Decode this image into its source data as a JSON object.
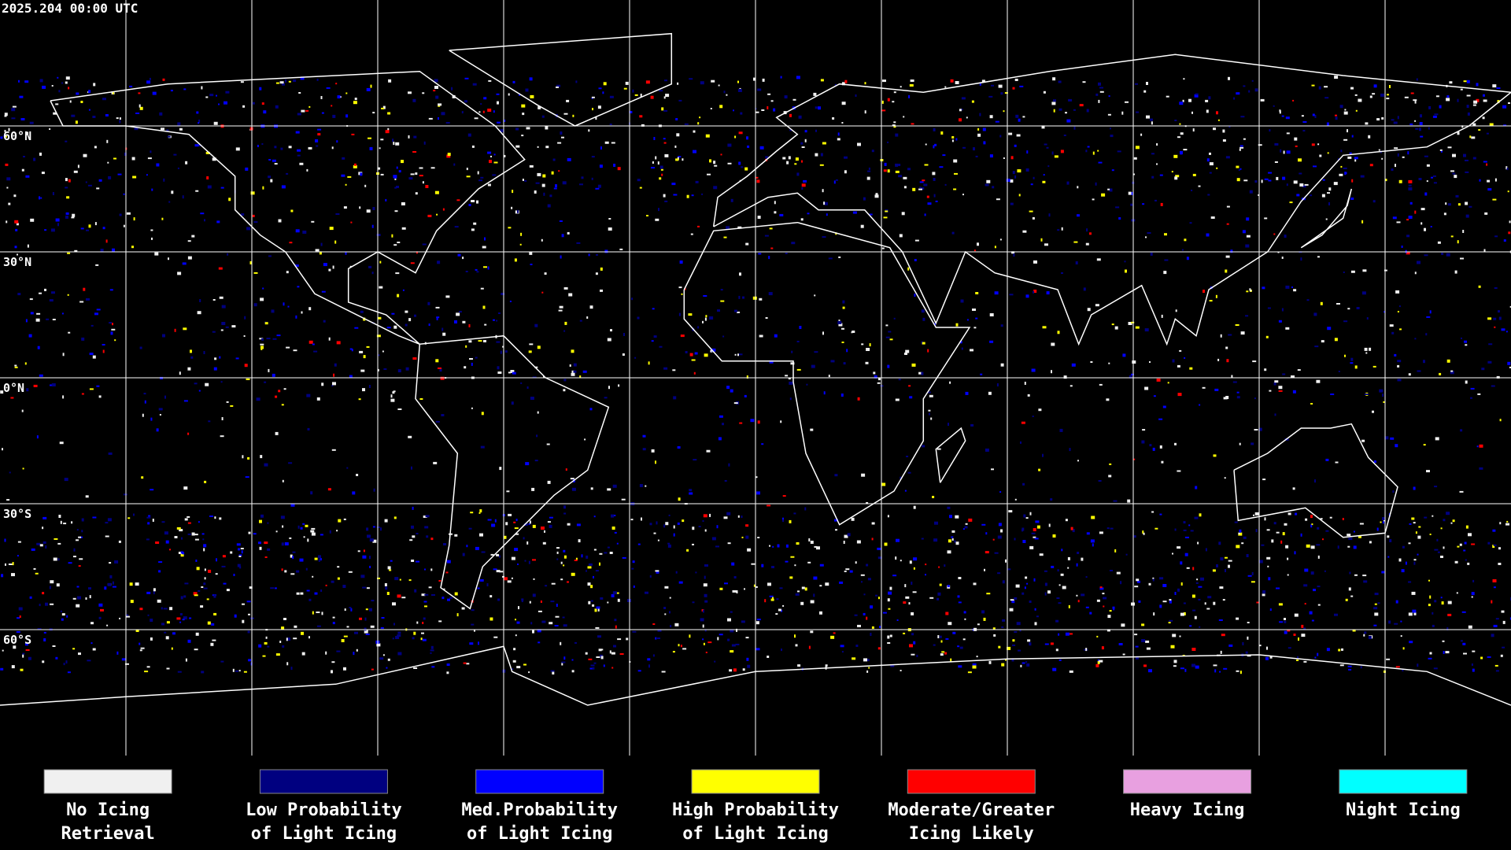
{
  "header": {
    "timestamp": "2025.204 00:00 UTC"
  },
  "map": {
    "latitude_labels": [
      "60°N",
      "30°N",
      "0°N",
      "30°S",
      "60°S"
    ]
  },
  "legend": [
    {
      "color": "#f0f0f0",
      "lines": [
        "No Icing",
        "Retrieval"
      ]
    },
    {
      "color": "#000080",
      "lines": [
        "Low Probability",
        "of Light Icing"
      ]
    },
    {
      "color": "#0000ff",
      "lines": [
        "Med.Probability",
        "of Light Icing"
      ]
    },
    {
      "color": "#ffff00",
      "lines": [
        "High Probability",
        "of Light Icing"
      ]
    },
    {
      "color": "#ff0000",
      "lines": [
        "Moderate/Greater",
        "Icing Likely"
      ]
    },
    {
      "color": "#e8a0e0",
      "lines": [
        "Heavy Icing"
      ]
    },
    {
      "color": "#00ffff",
      "lines": [
        "Night Icing"
      ]
    }
  ]
}
